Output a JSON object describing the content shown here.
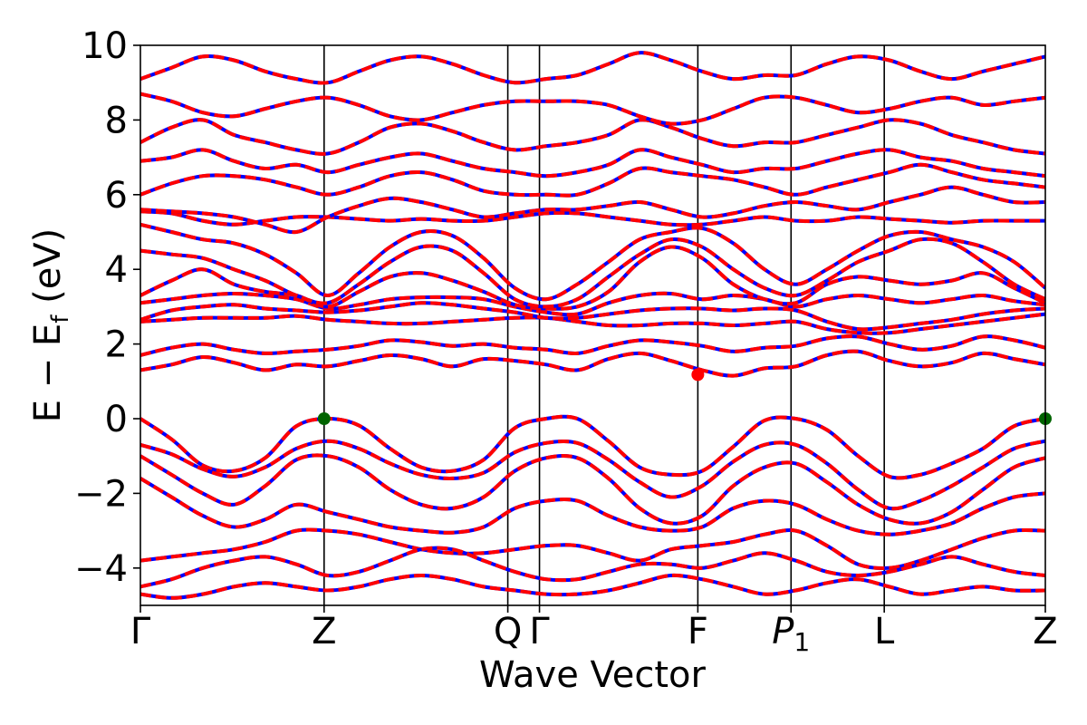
{
  "chart_data": {
    "type": "line",
    "title": "",
    "xlabel": "Wave Vector",
    "ylabel": "E − E",
    "ylabel_sub": "f",
    "ylabel_unit": " (eV)",
    "ylim": [
      -5,
      10
    ],
    "yticks": [
      -4,
      -2,
      0,
      2,
      4,
      6,
      8,
      10
    ],
    "ytick_labels": [
      "−4",
      "−2",
      "0",
      "2",
      "4",
      "6",
      "8",
      "10"
    ],
    "kpoints": [
      {
        "label": "Γ",
        "sub": "",
        "pos": 0.0
      },
      {
        "label": "Z",
        "sub": "",
        "pos": 0.203
      },
      {
        "label": "Q",
        "sub": "",
        "pos": 0.406
      },
      {
        "label": "Γ",
        "sub": "",
        "pos": 0.441
      },
      {
        "label": "F",
        "sub": "",
        "pos": 0.616
      },
      {
        "label": "P",
        "sub": "1",
        "pos": 0.719
      },
      {
        "label": "L",
        "sub": "",
        "pos": 0.822
      },
      {
        "label": "Z",
        "sub": "",
        "pos": 1.0
      }
    ],
    "grid": false,
    "colors": {
      "dft": "#0000ff",
      "model": "#ff0000",
      "vbm": "#006400",
      "cbm": "#ff0000"
    },
    "series": [
      {
        "values": [
          -0.0,
          -0.55,
          -1.25,
          -1.4,
          -1.05,
          -0.2,
          0.0,
          -0.18,
          -0.8,
          -1.3,
          -1.4,
          -1.1,
          -0.25,
          0.0,
          0.0,
          -0.6,
          -1.3,
          -1.5,
          -1.4,
          -0.75,
          -0.05,
          0.0,
          -0.3,
          -1.0,
          -1.55,
          -1.5,
          -1.2,
          -0.8,
          -0.2,
          0.0
        ]
      },
      {
        "values": [
          -0.7,
          -0.95,
          -1.35,
          -1.55,
          -1.3,
          -0.8,
          -0.6,
          -0.8,
          -1.2,
          -1.5,
          -1.6,
          -1.45,
          -0.9,
          -0.65,
          -0.65,
          -1.1,
          -1.7,
          -2.1,
          -1.8,
          -1.15,
          -0.7,
          -0.7,
          -1.2,
          -1.9,
          -2.4,
          -2.2,
          -1.8,
          -1.3,
          -0.8,
          -0.6
        ]
      },
      {
        "values": [
          -1.0,
          -1.5,
          -2.0,
          -2.3,
          -1.8,
          -1.1,
          -1.0,
          -1.3,
          -1.9,
          -2.3,
          -2.4,
          -2.1,
          -1.4,
          -1.05,
          -1.05,
          -1.6,
          -2.4,
          -2.8,
          -2.6,
          -1.8,
          -1.3,
          -1.2,
          -1.7,
          -2.3,
          -2.7,
          -2.8,
          -2.5,
          -1.9,
          -1.3,
          -1.05
        ]
      },
      {
        "values": [
          -1.6,
          -2.1,
          -2.6,
          -2.9,
          -2.7,
          -2.3,
          -2.5,
          -2.7,
          -2.9,
          -3.0,
          -3.05,
          -2.9,
          -2.4,
          -2.2,
          -2.2,
          -2.6,
          -2.9,
          -3.0,
          -2.9,
          -2.4,
          -2.2,
          -2.3,
          -2.7,
          -3.0,
          -3.1,
          -3.0,
          -2.8,
          -2.4,
          -2.1,
          -2.0
        ]
      },
      {
        "values": [
          -3.8,
          -3.7,
          -3.6,
          -3.5,
          -3.3,
          -3.0,
          -3.0,
          -3.1,
          -3.3,
          -3.5,
          -3.6,
          -3.6,
          -3.5,
          -3.4,
          -3.4,
          -3.6,
          -3.8,
          -3.5,
          -3.4,
          -3.3,
          -3.1,
          -3.0,
          -3.4,
          -3.9,
          -4.0,
          -3.8,
          -3.5,
          -3.2,
          -3.0,
          -3.0
        ]
      },
      {
        "values": [
          -4.5,
          -4.3,
          -4.0,
          -3.8,
          -3.7,
          -3.9,
          -4.2,
          -4.1,
          -3.8,
          -3.5,
          -3.5,
          -3.8,
          -4.1,
          -4.3,
          -4.3,
          -4.1,
          -3.9,
          -3.9,
          -4.0,
          -3.8,
          -3.6,
          -3.8,
          -4.1,
          -4.2,
          -4.1,
          -3.9,
          -3.7,
          -3.9,
          -4.1,
          -4.2
        ]
      },
      {
        "values": [
          -4.7,
          -4.8,
          -4.7,
          -4.5,
          -4.4,
          -4.5,
          -4.6,
          -4.5,
          -4.3,
          -4.2,
          -4.3,
          -4.5,
          -4.6,
          -4.7,
          -4.7,
          -4.6,
          -4.4,
          -4.2,
          -4.3,
          -4.5,
          -4.7,
          -4.6,
          -4.4,
          -4.3,
          -4.5,
          -4.7,
          -4.6,
          -4.5,
          -4.6,
          -4.6
        ]
      },
      {
        "values": [
          1.3,
          1.45,
          1.65,
          1.5,
          1.3,
          1.45,
          1.4,
          1.55,
          1.7,
          1.6,
          1.4,
          1.6,
          1.55,
          1.45,
          1.3,
          1.6,
          1.75,
          1.55,
          1.3,
          1.15,
          1.35,
          1.4,
          1.7,
          1.8,
          1.55,
          1.4,
          1.5,
          1.75,
          1.6,
          1.45
        ]
      },
      {
        "values": [
          1.7,
          1.9,
          2.0,
          1.85,
          1.75,
          1.8,
          1.85,
          1.95,
          2.1,
          2.05,
          1.95,
          2.0,
          1.9,
          1.85,
          1.75,
          1.95,
          2.1,
          2.05,
          1.95,
          1.8,
          1.9,
          1.95,
          2.15,
          2.2,
          2.0,
          1.85,
          1.95,
          2.2,
          2.1,
          1.9
        ]
      },
      {
        "values": [
          2.6,
          2.65,
          2.7,
          2.7,
          2.7,
          2.75,
          2.65,
          2.6,
          2.55,
          2.55,
          2.6,
          2.65,
          2.7,
          2.7,
          2.6,
          2.5,
          2.5,
          2.55,
          2.55,
          2.5,
          2.55,
          2.6,
          2.4,
          2.3,
          2.3,
          2.4,
          2.5,
          2.6,
          2.7,
          2.8
        ]
      },
      {
        "values": [
          2.65,
          2.9,
          3.0,
          3.05,
          2.95,
          2.9,
          2.85,
          2.9,
          3.0,
          3.1,
          3.05,
          2.95,
          2.85,
          2.7,
          2.7,
          2.8,
          2.9,
          2.95,
          2.95,
          2.9,
          2.95,
          2.9,
          2.6,
          2.4,
          2.45,
          2.55,
          2.65,
          2.8,
          2.9,
          2.95
        ]
      },
      {
        "values": [
          3.1,
          3.2,
          3.3,
          3.35,
          3.3,
          3.2,
          2.95,
          3.05,
          3.2,
          3.25,
          3.25,
          3.2,
          3.0,
          2.85,
          2.8,
          3.1,
          3.3,
          3.35,
          3.2,
          3.3,
          3.2,
          3.0,
          3.2,
          3.3,
          3.2,
          3.1,
          3.2,
          3.3,
          3.15,
          3.05
        ]
      },
      {
        "values": [
          3.3,
          3.7,
          4.0,
          3.6,
          3.4,
          3.3,
          3.0,
          3.4,
          3.8,
          3.9,
          3.7,
          3.4,
          3.05,
          2.95,
          3.0,
          3.4,
          4.2,
          4.6,
          4.3,
          3.6,
          3.2,
          3.1,
          3.6,
          3.8,
          3.7,
          3.6,
          3.7,
          3.9,
          3.5,
          3.1
        ]
      },
      {
        "values": [
          4.5,
          4.4,
          4.3,
          4.0,
          3.7,
          3.3,
          3.1,
          3.6,
          4.2,
          4.6,
          4.5,
          3.9,
          3.2,
          3.0,
          3.2,
          3.8,
          4.4,
          4.8,
          4.6,
          4.0,
          3.5,
          3.3,
          3.7,
          4.2,
          4.5,
          4.8,
          4.7,
          4.2,
          3.6,
          3.2
        ]
      },
      {
        "values": [
          5.2,
          5.0,
          4.8,
          4.7,
          4.4,
          3.9,
          3.3,
          3.9,
          4.6,
          5.0,
          4.9,
          4.3,
          3.5,
          3.2,
          3.6,
          4.2,
          4.8,
          5.0,
          5.1,
          4.7,
          4.0,
          3.6,
          4.0,
          4.5,
          4.9,
          5.0,
          4.8,
          4.6,
          4.2,
          3.5
        ]
      },
      {
        "values": [
          5.55,
          5.5,
          5.3,
          5.2,
          5.3,
          5.4,
          5.4,
          5.35,
          5.3,
          5.35,
          5.3,
          5.3,
          5.4,
          5.5,
          5.5,
          5.4,
          5.3,
          5.2,
          5.2,
          5.3,
          5.4,
          5.3,
          5.3,
          5.4,
          5.35,
          5.3,
          5.25,
          5.3,
          5.3,
          5.3
        ]
      },
      {
        "values": [
          5.6,
          5.55,
          5.5,
          5.4,
          5.2,
          5.0,
          5.4,
          5.7,
          5.9,
          5.8,
          5.6,
          5.4,
          5.5,
          5.6,
          5.6,
          5.7,
          5.8,
          5.6,
          5.4,
          5.5,
          5.7,
          5.8,
          5.7,
          5.6,
          5.8,
          6.0,
          6.2,
          6.0,
          5.8,
          5.8
        ]
      },
      {
        "values": [
          6.0,
          6.3,
          6.5,
          6.5,
          6.4,
          6.2,
          6.0,
          6.2,
          6.5,
          6.6,
          6.4,
          6.1,
          6.0,
          6.0,
          6.0,
          6.3,
          6.7,
          6.6,
          6.5,
          6.4,
          6.2,
          6.0,
          6.2,
          6.4,
          6.6,
          6.8,
          6.6,
          6.4,
          6.3,
          6.2
        ]
      },
      {
        "values": [
          6.9,
          7.0,
          7.2,
          6.9,
          6.7,
          6.8,
          6.6,
          6.8,
          7.0,
          7.1,
          6.9,
          6.7,
          6.6,
          6.5,
          6.6,
          6.8,
          7.2,
          7.0,
          6.8,
          6.6,
          6.7,
          6.7,
          6.9,
          7.1,
          7.2,
          7.0,
          6.9,
          6.7,
          6.6,
          6.5
        ]
      },
      {
        "values": [
          7.4,
          7.8,
          8.0,
          7.6,
          7.4,
          7.2,
          7.1,
          7.4,
          7.8,
          7.9,
          7.7,
          7.4,
          7.2,
          7.3,
          7.4,
          7.6,
          8.0,
          7.8,
          7.5,
          7.3,
          7.4,
          7.4,
          7.6,
          7.8,
          8.0,
          7.9,
          7.6,
          7.4,
          7.2,
          7.1
        ]
      },
      {
        "values": [
          8.7,
          8.5,
          8.2,
          8.1,
          8.3,
          8.5,
          8.6,
          8.4,
          8.1,
          8.0,
          8.2,
          8.4,
          8.5,
          8.5,
          8.5,
          8.4,
          8.1,
          7.9,
          8.0,
          8.3,
          8.6,
          8.6,
          8.4,
          8.2,
          8.3,
          8.5,
          8.6,
          8.4,
          8.5,
          8.6
        ]
      },
      {
        "values": [
          9.1,
          9.4,
          9.7,
          9.6,
          9.3,
          9.1,
          9.0,
          9.3,
          9.6,
          9.7,
          9.5,
          9.2,
          9.0,
          9.1,
          9.2,
          9.5,
          9.8,
          9.6,
          9.3,
          9.1,
          9.2,
          9.2,
          9.5,
          9.7,
          9.6,
          9.3,
          9.1,
          9.3,
          9.5,
          9.7
        ]
      }
    ],
    "points": [
      {
        "kind": "vbm",
        "pos": 0.203,
        "energy": 0.0
      },
      {
        "kind": "vbm",
        "pos": 1.0,
        "energy": 0.0
      },
      {
        "kind": "cbm",
        "pos": 0.616,
        "energy": 1.18
      }
    ]
  }
}
